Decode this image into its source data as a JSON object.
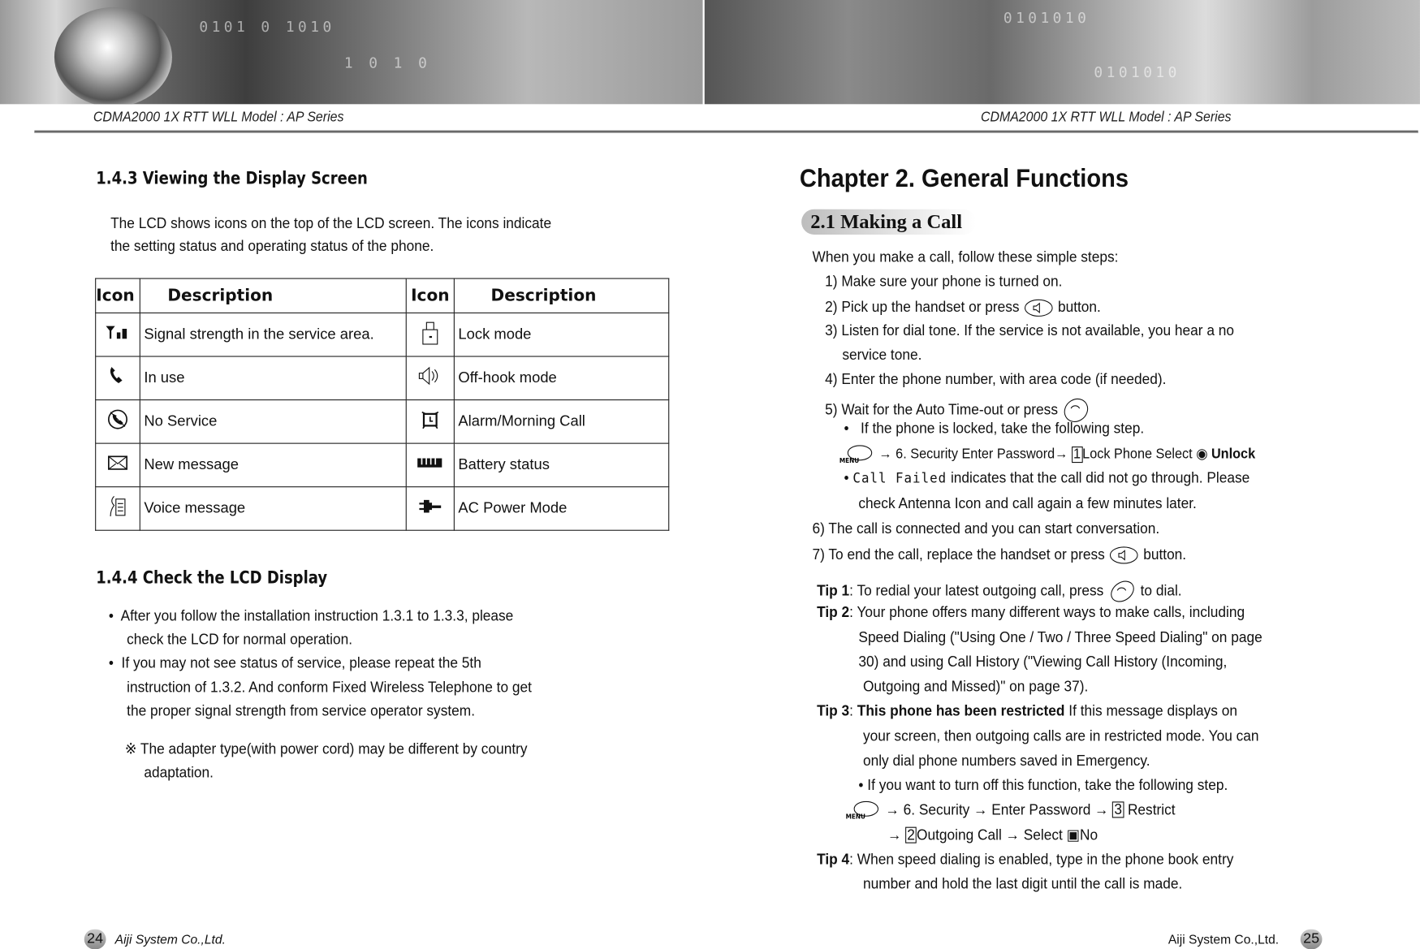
{
  "header": {
    "left": "CDMA2000 1X RTT WLL     Model :  AP Series",
    "right": "CDMA2000 1X RTT WLL     Model :  AP Series"
  },
  "left": {
    "section1_title": "1.4.3 Viewing the Display Screen",
    "section1_para": [
      "The LCD shows icons on the top of the LCD screen. The icons indicate",
      "the setting status and operating status of the phone."
    ],
    "table": {
      "headers": [
        "Icon",
        "Description",
        "Icon",
        "Description"
      ],
      "rows": [
        {
          "icon1": "signal-strength-icon",
          "desc1": "Signal strength in the service area.",
          "icon2": "lock-icon",
          "desc2": "Lock mode"
        },
        {
          "icon1": "phone-handset-icon",
          "desc1": "In use",
          "icon2": "speaker-icon",
          "desc2": "Off-hook mode"
        },
        {
          "icon1": "no-service-icon",
          "desc1": "No Service",
          "icon2": "alarm-clock-icon",
          "desc2": "Alarm/Morning Call"
        },
        {
          "icon1": "envelope-icon",
          "desc1": "New message",
          "icon2": "battery-icon",
          "desc2": "Battery status"
        },
        {
          "icon1": "voice-message-icon",
          "desc1": "Voice message",
          "icon2": "power-plug-icon",
          "desc2": "AC Power Mode"
        }
      ]
    },
    "section2_title": "1.4.4 Check the LCD Display",
    "bullets": [
      [
        "After you follow the installation instruction 1.3.1 to 1.3.3, please",
        "check the LCD for normal operation."
      ],
      [
        "If you may not see status of service, please repeat the 5th",
        "instruction of 1.3.2. And conform Fixed Wireless Telephone to get",
        "the proper signal strength from service operator system."
      ]
    ],
    "note": [
      "※ The adapter type(with power cord) may be different by country",
      "adaptation."
    ]
  },
  "right": {
    "chapter_title": "Chapter 2. General Functions",
    "section_title": "2.1 Making a Call",
    "intro": "When you make a call, follow these simple steps:",
    "step1": "1) Make sure your phone is turned on.",
    "step2a": "2) Pick up the handset or press",
    "step2b": "button.",
    "step3a": "3) Listen for dial tone. If the service is not available, you hear a no",
    "step3b": "service tone.",
    "step4": "4) Enter the phone number, with area code (if needed).",
    "step5": "5) Wait for the Auto Time-out or press",
    "locked_bullet": "If the phone is locked, take the following step.",
    "unlock_path": {
      "menu": "MENU",
      "a": "→  6. Security  Enter Password→",
      "num": "1",
      "b": "Lock Phone  Select",
      "c": "Unlock"
    },
    "call_failed_a": "Call Failed",
    "call_failed_b": "indicates that the call did not go through. Please",
    "call_failed_c": "check Antenna Icon and call again a few minutes later.",
    "step6": "6) The call is connected and you can start conversation.",
    "step7a": "7) To end the call, replace the handset or press",
    "step7b": "button.",
    "tip1": {
      "label": "Tip 1",
      "a": ": To redial your latest outgoing call, press",
      "b": "to dial."
    },
    "tip2": {
      "label": "Tip 2",
      "lines": [
        ": Your phone offers many different ways to make calls, including",
        "Speed Dialing (\"Using One / Two / Three Speed Dialing\" on page",
        "30) and using Call History (\"Viewing Call History (Incoming,",
        "Outgoing and Missed)\" on page 37)."
      ]
    },
    "tip3": {
      "label": "Tip 3",
      "bold": "This phone has been restricted",
      "a": " If this message displays on",
      "lines": [
        "your screen, then outgoing calls are in restricted mode. You can",
        "only dial phone numbers saved in Emergency."
      ],
      "bullet": "If you want to turn off this function, take the following step."
    },
    "restrict_path": {
      "menu": "MENU",
      "a": "→  6. Security →  Enter Password →",
      "num1": "3",
      "b": "Restrict",
      "c": "→",
      "num2": "2",
      "d": "Outgoing Call →  Select",
      "e": "No"
    },
    "tip4": {
      "label": "Tip 4",
      "lines": [
        ": When speed dialing is enabled, type in the phone book entry",
        "number and hold the last digit until the call is made."
      ]
    }
  },
  "footer": {
    "left_page": "24",
    "left_company": "Aiji System Co.,Ltd.",
    "right_company": "Aiji System Co.,Ltd.",
    "right_page": "25"
  }
}
